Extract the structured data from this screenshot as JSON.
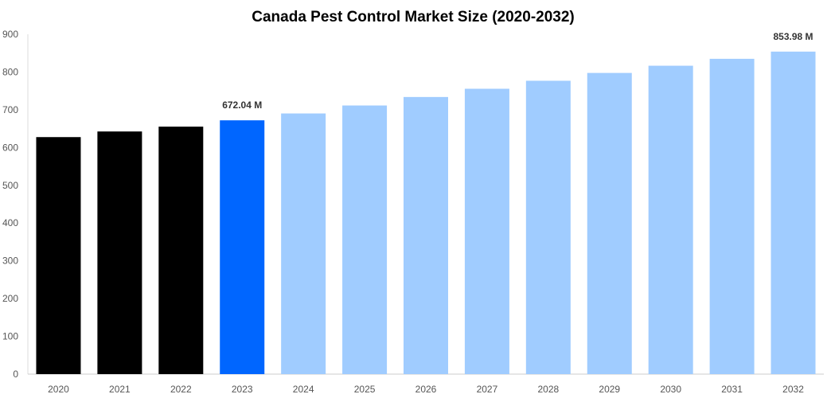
{
  "chart_data": {
    "type": "bar",
    "title": "Canada Pest Control Market Size (2020-2032)",
    "xlabel": "",
    "ylabel": "",
    "ylim": [
      0,
      900
    ],
    "yticks": [
      0,
      100,
      200,
      300,
      400,
      500,
      600,
      700,
      800,
      900
    ],
    "categories": [
      "2020",
      "2021",
      "2022",
      "2023",
      "2024",
      "2025",
      "2026",
      "2027",
      "2028",
      "2029",
      "2030",
      "2031",
      "2032"
    ],
    "values": [
      627.6,
      642.5,
      655.3,
      672.04,
      690.2,
      711.3,
      733.8,
      755.6,
      776.8,
      797.5,
      816.6,
      834.9,
      853.98
    ],
    "colors": [
      "#000000",
      "#000000",
      "#000000",
      "#0066ff",
      "#a0ccff",
      "#a0ccff",
      "#a0ccff",
      "#a0ccff",
      "#a0ccff",
      "#a0ccff",
      "#a0ccff",
      "#a0ccff",
      "#a0ccff"
    ],
    "data_labels": [
      {
        "index": 3,
        "text": "672.04 M"
      },
      {
        "index": 12,
        "text": "853.98 M"
      }
    ],
    "grid": false
  }
}
